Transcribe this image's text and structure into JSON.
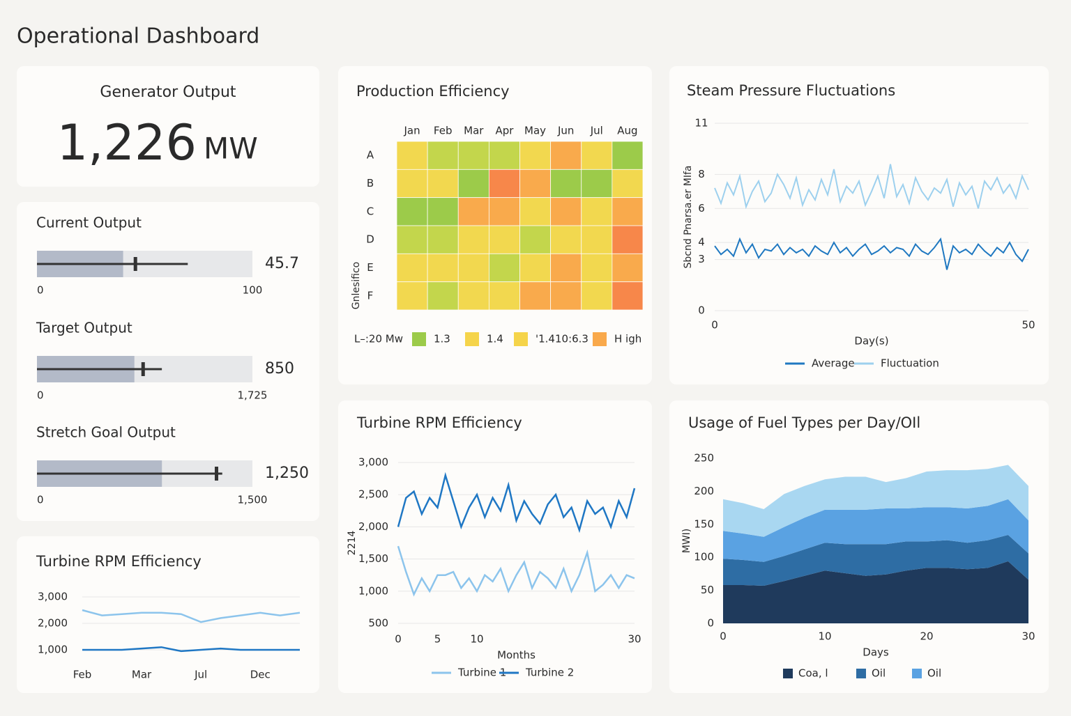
{
  "title": "Operational Dashboard",
  "kpi": {
    "title": "Generator Output",
    "value": "1,226",
    "unit": "MW"
  },
  "chart_data": [
    {
      "type": "bullet",
      "title": "Current Output",
      "value": 45.7,
      "measure": 40,
      "target": 70,
      "xlim": [
        0,
        100
      ],
      "xticks": [
        0,
        100
      ]
    },
    {
      "type": "bullet",
      "title": "Target Output",
      "value": 850,
      "measure": 780,
      "target": 1000,
      "xlim": [
        0,
        1725
      ],
      "xticks": [
        0,
        {
          "value": 1725,
          "label": "1,725"
        }
      ]
    },
    {
      "type": "bullet",
      "title": "Stretch Goal Output",
      "value": 1250,
      "value_label": "1,250",
      "measure": 870,
      "target": 1290,
      "xlim": [
        0,
        1500
      ],
      "xticks": [
        0,
        {
          "value": 1500,
          "label": "1,500"
        }
      ]
    },
    {
      "type": "heatmap",
      "title": "Production Efficiency",
      "ylabel": "Gnlesifico",
      "categories": [
        "Jan",
        "Feb",
        "Mar",
        "Apr",
        "May",
        "Jun",
        "Jul",
        "Aug"
      ],
      "rows": [
        "A",
        "B",
        "C",
        "D",
        "E",
        "F"
      ],
      "values": [
        [
          2,
          1,
          1,
          1,
          2,
          3,
          2,
          0
        ],
        [
          2,
          2,
          0,
          4,
          3,
          0,
          0,
          2
        ],
        [
          0,
          0,
          3,
          3,
          2,
          3,
          2,
          3
        ],
        [
          1,
          1,
          2,
          2,
          1,
          2,
          2,
          4
        ],
        [
          2,
          2,
          2,
          1,
          2,
          3,
          2,
          3
        ],
        [
          2,
          1,
          2,
          2,
          3,
          3,
          2,
          4
        ]
      ],
      "zlim": [
        0,
        4
      ],
      "colors": [
        "#9ccb4a",
        "#c3d64c",
        "#f2d84f",
        "#f9aa4c",
        "#f7874a"
      ],
      "legend_title": "L–:20 Mw",
      "legend": [
        {
          "label": "1.3",
          "color": "#9ccb4a"
        },
        {
          "label": "1.4",
          "color": "#f5d44a"
        },
        {
          "label": "'1.410:6.3",
          "color": "#f5d44a"
        },
        {
          "label": "H igh",
          "color": "#f9a94b"
        }
      ]
    },
    {
      "type": "line",
      "title": "Steam Pressure Fluctuations",
      "xlabel": "Day(s)",
      "ylabel": "Sbcnd Pnarsa.er MIfa",
      "grid": true,
      "x": [
        0,
        1,
        2,
        3,
        4,
        5,
        6,
        7,
        8,
        9,
        10,
        11,
        12,
        13,
        14,
        15,
        16,
        17,
        18,
        19,
        20,
        21,
        22,
        23,
        24,
        25,
        26,
        27,
        28,
        29,
        30,
        31,
        32,
        33,
        34,
        35,
        36,
        37,
        38,
        39,
        40,
        41,
        42,
        43,
        44,
        45,
        46,
        47,
        48,
        49,
        50
      ],
      "xlim": [
        0,
        50
      ],
      "xticks": [
        0,
        50
      ],
      "ylim": [
        0,
        11
      ],
      "yticks": [
        0,
        3,
        4,
        6,
        8,
        11
      ],
      "series": [
        {
          "name": "Average",
          "color": "#1f78c1",
          "values": [
            3.8,
            3.3,
            3.6,
            3.2,
            4.2,
            3.4,
            3.9,
            3.1,
            3.6,
            3.5,
            3.9,
            3.3,
            3.7,
            3.4,
            3.6,
            3.2,
            3.8,
            3.5,
            3.3,
            4.0,
            3.4,
            3.7,
            3.2,
            3.6,
            3.9,
            3.3,
            3.5,
            3.8,
            3.4,
            3.7,
            3.6,
            3.2,
            3.9,
            3.5,
            3.3,
            3.7,
            4.2,
            2.4,
            3.8,
            3.4,
            3.6,
            3.3,
            3.9,
            3.5,
            3.2,
            3.7,
            3.4,
            4.0,
            3.3,
            2.9,
            3.6
          ]
        },
        {
          "name": "Fluctuation",
          "color": "#9dd0ee",
          "values": [
            7.2,
            6.3,
            7.5,
            6.8,
            7.9,
            6.1,
            7.0,
            7.6,
            6.4,
            6.9,
            8.0,
            7.4,
            6.6,
            7.8,
            6.2,
            7.1,
            6.5,
            7.7,
            6.8,
            8.3,
            6.4,
            7.3,
            6.9,
            7.6,
            6.2,
            7.0,
            7.9,
            6.6,
            8.6,
            6.7,
            7.4,
            6.3,
            7.8,
            7.0,
            6.5,
            7.2,
            6.9,
            7.7,
            6.1,
            7.5,
            6.8,
            7.3,
            6.0,
            7.6,
            7.1,
            7.8,
            6.9,
            7.4,
            6.6,
            7.9,
            7.1
          ]
        }
      ]
    },
    {
      "type": "line",
      "title": "Turbine RPM Efficiency",
      "xlabel": "Months",
      "ylabel": "2214",
      "grid": true,
      "x": [
        0,
        1,
        2,
        3,
        4,
        5,
        6,
        7,
        8,
        9,
        10,
        11,
        12,
        13,
        14,
        15,
        16,
        17,
        18,
        19,
        20,
        21,
        22,
        23,
        24,
        25,
        26,
        27,
        28,
        29,
        30
      ],
      "xlim": [
        0,
        30
      ],
      "xticks": [
        0,
        5,
        10,
        30
      ],
      "ylim": [
        500,
        3000
      ],
      "yticks": [
        500,
        {
          "value": 1000,
          "label": "1,000"
        },
        {
          "value": 1500,
          "label": "1,500"
        },
        {
          "value": 2000,
          "label": "2,000"
        },
        {
          "value": 2500,
          "label": "2,500"
        },
        {
          "value": 3000,
          "label": "3,000"
        }
      ],
      "series": [
        {
          "name": "Turbine 1",
          "color": "#8cc4ec",
          "values": [
            1700,
            1300,
            950,
            1200,
            1000,
            1250,
            1250,
            1300,
            1050,
            1200,
            1000,
            1250,
            1150,
            1350,
            1000,
            1250,
            1450,
            1050,
            1300,
            1200,
            1050,
            1350,
            1000,
            1250,
            1600,
            1000,
            1100,
            1250,
            1050,
            1250,
            1200
          ]
        },
        {
          "name": "Turbine 2",
          "color": "#1f77c4",
          "values": [
            2000,
            2450,
            2550,
            2200,
            2450,
            2300,
            2800,
            2400,
            2000,
            2300,
            2500,
            2150,
            2450,
            2250,
            2650,
            2100,
            2400,
            2200,
            2050,
            2350,
            2500,
            2150,
            2300,
            1950,
            2400,
            2200,
            2300,
            2000,
            2400,
            2150,
            2600
          ]
        }
      ]
    },
    {
      "type": "area",
      "title": "Usage of Fuel Types per Day/OIl",
      "xlabel": "Days",
      "ylabel": "MWI)",
      "grid": false,
      "x": [
        0,
        2,
        4,
        6,
        8,
        10,
        12,
        14,
        16,
        18,
        20,
        22,
        24,
        26,
        28,
        30
      ],
      "xlim": [
        0,
        30
      ],
      "xticks": [
        0,
        10,
        20,
        30
      ],
      "ylim": [
        0,
        250
      ],
      "yticks": [
        0,
        50,
        100,
        150,
        200,
        250
      ],
      "series": [
        {
          "name": "Coa, l",
          "color": "#1f3a5c",
          "values": [
            58,
            58,
            57,
            64,
            72,
            80,
            76,
            72,
            74,
            80,
            84,
            84,
            82,
            84,
            94,
            66
          ]
        },
        {
          "name": "Oil",
          "color": "#2e6da4",
          "values": [
            40,
            38,
            36,
            38,
            40,
            42,
            44,
            48,
            46,
            44,
            40,
            42,
            40,
            42,
            40,
            40
          ]
        },
        {
          "name": "Oil",
          "color": "#5aa2e2",
          "values": [
            42,
            40,
            38,
            44,
            48,
            50,
            52,
            52,
            54,
            50,
            52,
            50,
            52,
            52,
            54,
            50
          ]
        },
        {
          "color": "#a9d7f1",
          "values": [
            48,
            46,
            42,
            50,
            48,
            46,
            50,
            50,
            40,
            46,
            54,
            56,
            58,
            56,
            52,
            52
          ]
        }
      ]
    },
    {
      "type": "line",
      "title": "Turbine RPM Efficiency",
      "grid": true,
      "categories": [
        "Feb",
        null,
        null,
        "Mar",
        null,
        null,
        "Jul",
        null,
        null,
        "Dec",
        null,
        null
      ],
      "ylim": [
        500,
        3000
      ],
      "yticks": [
        {
          "value": 1000,
          "label": "1,000"
        },
        {
          "value": 2000,
          "label": "2,000"
        },
        {
          "value": 3000,
          "label": "3,000"
        }
      ],
      "series": [
        {
          "color": "#8cc4ec",
          "values": [
            2500,
            2300,
            2350,
            2400,
            2400,
            2350,
            2050,
            2200,
            2300,
            2400,
            2300,
            2400
          ]
        },
        {
          "color": "#1f77c4",
          "values": [
            1000,
            1000,
            1000,
            1050,
            1100,
            950,
            1000,
            1050,
            1000,
            1000,
            1000,
            1000
          ]
        }
      ]
    }
  ]
}
